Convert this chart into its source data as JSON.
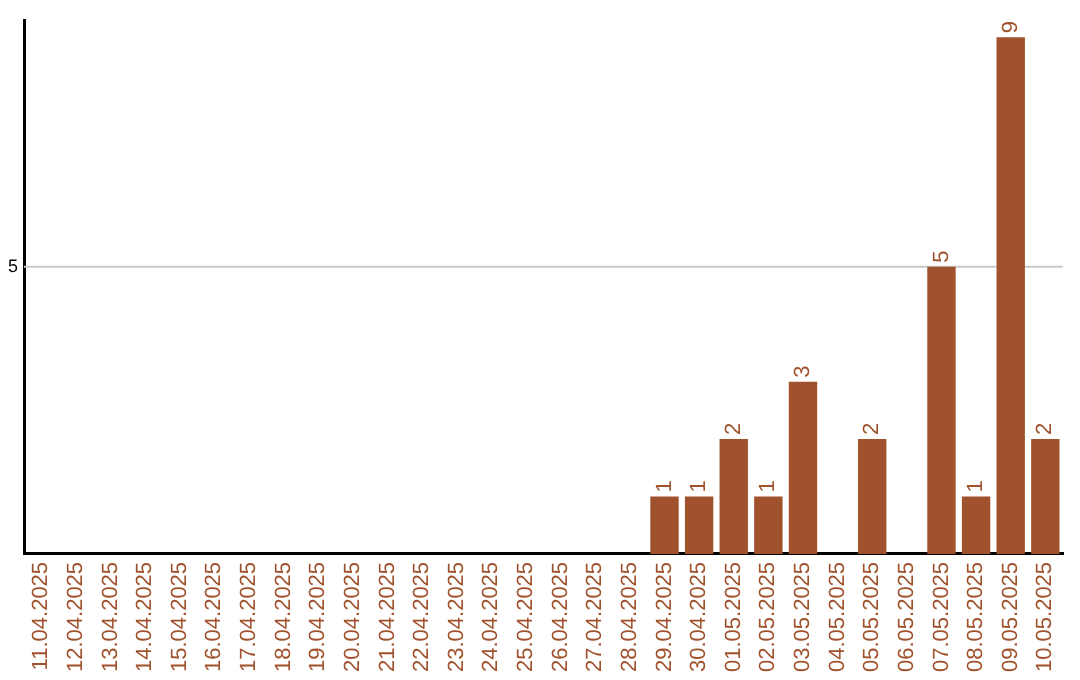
{
  "chart_data": {
    "type": "bar",
    "categories": [
      "11.04.2025",
      "12.04.2025",
      "13.04.2025",
      "14.04.2025",
      "15.04.2025",
      "16.04.2025",
      "17.04.2025",
      "18.04.2025",
      "19.04.2025",
      "20.04.2025",
      "21.04.2025",
      "22.04.2025",
      "23.04.2025",
      "24.04.2025",
      "25.04.2025",
      "26.04.2025",
      "27.04.2025",
      "28.04.2025",
      "29.04.2025",
      "30.04.2025",
      "01.05.2025",
      "02.05.2025",
      "03.05.2025",
      "04.05.2025",
      "05.05.2025",
      "06.05.2025",
      "07.05.2025",
      "08.05.2025",
      "09.05.2025",
      "10.05.2025"
    ],
    "values": [
      null,
      null,
      null,
      null,
      null,
      null,
      null,
      null,
      null,
      null,
      null,
      null,
      null,
      null,
      null,
      null,
      null,
      null,
      1,
      1,
      2,
      1,
      3,
      null,
      2,
      null,
      5,
      1,
      9,
      2
    ],
    "data_labels": true,
    "color": "#a0522d",
    "ylim": [
      0,
      9.3
    ],
    "ref_lines": [
      {
        "axis": "y",
        "value": 5,
        "label": "5",
        "color": "#c8c8c8"
      }
    ],
    "legend": false
  }
}
